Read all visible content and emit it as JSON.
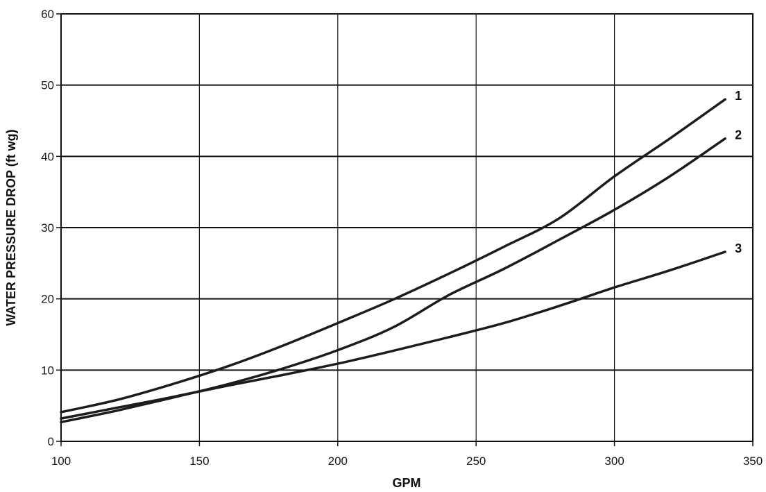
{
  "chart_data": {
    "type": "line",
    "xlabel": "GPM",
    "ylabel": "WATER PRESSURE DROP (ft wg)",
    "xlim": [
      100,
      350
    ],
    "ylim": [
      0,
      60
    ],
    "xticks": [
      100,
      150,
      200,
      250,
      300,
      350
    ],
    "yticks": [
      0,
      10,
      20,
      30,
      40,
      50,
      60
    ],
    "grid": true,
    "series": [
      {
        "name": "1",
        "x": [
          100,
          120,
          140,
          160,
          180,
          200,
          220,
          240,
          260,
          280,
          300,
          320,
          340
        ],
        "values": [
          4.1,
          5.8,
          8.0,
          10.5,
          13.4,
          16.6,
          19.9,
          23.5,
          27.3,
          31.3,
          37.2,
          42.5,
          48.0
        ]
      },
      {
        "name": "2",
        "x": [
          100,
          120,
          140,
          160,
          180,
          200,
          220,
          240,
          260,
          280,
          300,
          320,
          340
        ],
        "values": [
          2.7,
          4.3,
          6.1,
          8.0,
          10.2,
          12.8,
          16.0,
          20.5,
          24.2,
          28.3,
          32.5,
          37.2,
          42.5
        ]
      },
      {
        "name": "3",
        "x": [
          100,
          120,
          140,
          160,
          180,
          200,
          220,
          240,
          260,
          280,
          300,
          320,
          340
        ],
        "values": [
          3.2,
          4.7,
          6.2,
          7.8,
          9.3,
          10.9,
          12.7,
          14.6,
          16.6,
          19.0,
          21.6,
          24.0,
          26.6
        ]
      }
    ]
  }
}
